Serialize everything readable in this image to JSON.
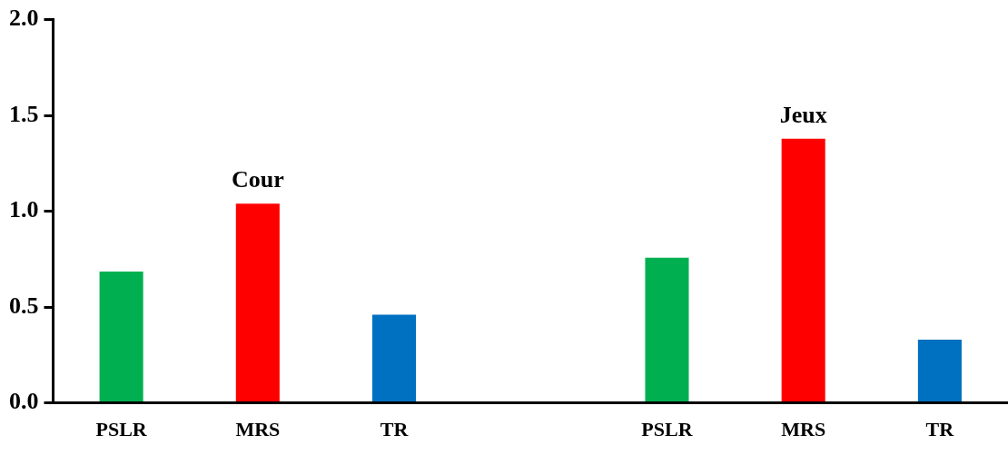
{
  "chart_data": {
    "type": "bar",
    "categories": [
      "PSLR",
      "MRS",
      "TR",
      null,
      "PSLR",
      "MRS",
      "TR"
    ],
    "values": [
      0.685,
      1.04,
      0.46,
      null,
      0.757,
      1.378,
      0.33
    ],
    "colors": [
      "#00b050",
      "#ff0000",
      "#0070c0",
      null,
      "#00b050",
      "#ff0000",
      "#0070c0"
    ],
    "ylim": [
      0,
      2
    ],
    "yticks": [
      {
        "value": 0,
        "label": "0.0"
      },
      0.5,
      {
        "value": 1,
        "label": "1.0"
      },
      1.5,
      {
        "value": 2,
        "label": "2.0"
      }
    ],
    "grid": false,
    "legend": false,
    "annotations": [
      "Cour",
      "Jeux"
    ]
  }
}
